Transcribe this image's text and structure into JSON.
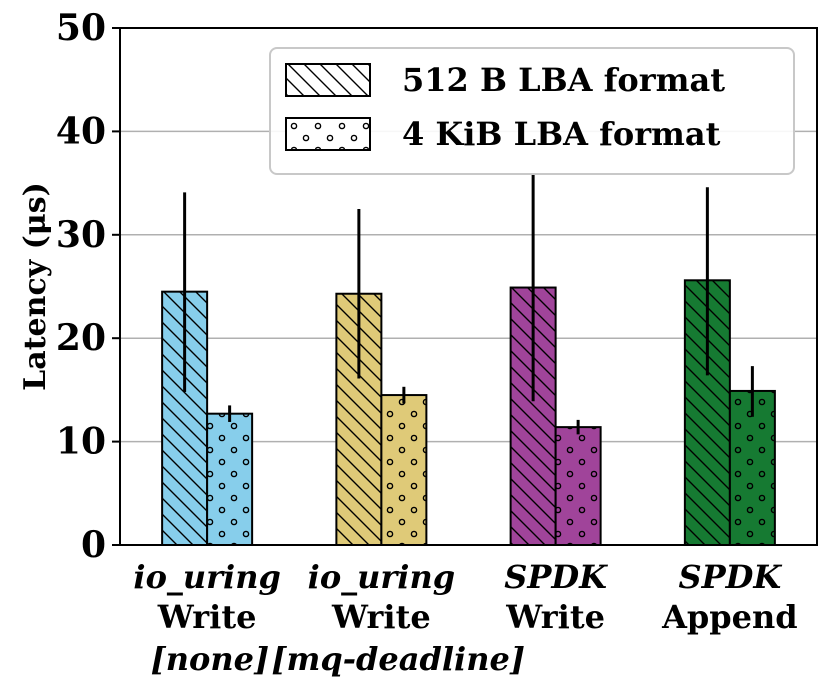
{
  "chart_data": {
    "type": "bar",
    "title": "",
    "xlabel": "",
    "ylabel": "Latency (μs)",
    "ylim": [
      0,
      50
    ],
    "yticks": [
      0,
      10,
      20,
      30,
      40,
      50
    ],
    "grid": true,
    "legend_position": "top-right",
    "categories": [
      {
        "line1": "io_uring",
        "line2": "Write",
        "note": "[none]",
        "color": "#87ceeb"
      },
      {
        "line1": "io_uring",
        "line2": "Write",
        "note": "[mq-deadline]",
        "color": "#dfca78"
      },
      {
        "line1": "SPDK",
        "line2": "Write",
        "note": "",
        "color": "#a0449a"
      },
      {
        "line1": "SPDK",
        "line2": "Append",
        "note": "",
        "color": "#167a32"
      }
    ],
    "series": [
      {
        "name": "512 B LBA format",
        "pattern": "diagonal-hatch",
        "values": [
          24.5,
          24.3,
          24.9,
          25.6
        ],
        "errors": [
          [
            14.8,
            34.1
          ],
          [
            16.1,
            32.5
          ],
          [
            13.9,
            35.8
          ],
          [
            16.4,
            34.6
          ]
        ]
      },
      {
        "name": "4 KiB LBA format",
        "pattern": "dots",
        "values": [
          12.7,
          14.5,
          11.4,
          14.9
        ],
        "errors": [
          [
            11.9,
            13.5
          ],
          [
            13.7,
            15.3
          ],
          [
            10.7,
            12.1
          ],
          [
            12.4,
            17.3
          ]
        ]
      }
    ]
  }
}
